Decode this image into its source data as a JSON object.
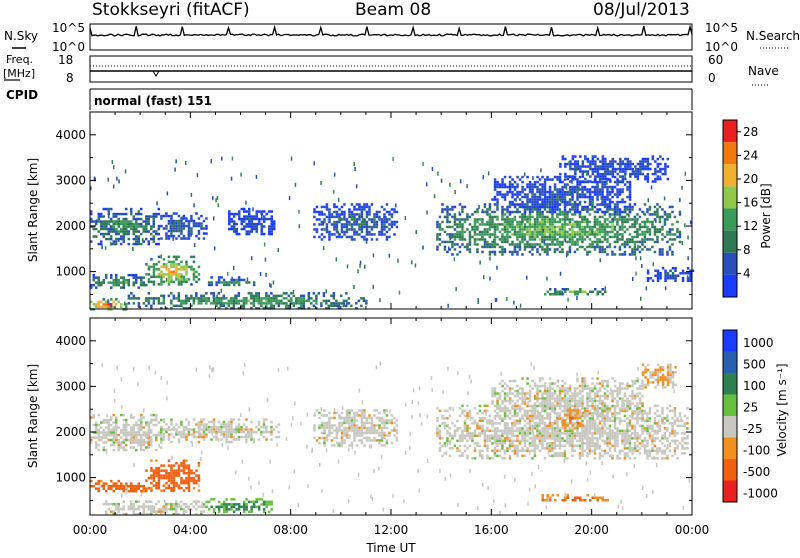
{
  "header": {
    "station": "Stokkseyri (fitACF)",
    "beam": "Beam 08",
    "date": "08/Jul/2013"
  },
  "top_panels": {
    "nsky_label": "N.Sky",
    "nsearch_label": "N.Search",
    "noise_ticks_left": [
      "10^5",
      "10^0"
    ],
    "noise_ticks_right": [
      "10^5",
      "10^0"
    ],
    "freq_label": "Freq.",
    "freq_unit": "[MHz]",
    "freq_ticks": [
      "18",
      "8"
    ],
    "nave_label": "Nave",
    "nave_ticks": [
      "60",
      "0"
    ],
    "cpid_label": "CPID",
    "cpid_value": "normal (fast) 151"
  },
  "colors": {
    "power_scale": [
      "#1a3cff",
      "#2850b8",
      "#2f7a55",
      "#3a9a5a",
      "#8fc84a",
      "#f0b030",
      "#f07a10",
      "#e82020"
    ],
    "velocity_scale": [
      "#1a3cff",
      "#2860b0",
      "#2f8050",
      "#66c040",
      "#c8c8c0",
      "#f09020",
      "#f06010",
      "#e82020"
    ]
  },
  "chart_data": [
    {
      "type": "heatmap",
      "name": "power",
      "ylabel": "Slant Range [km]",
      "yticks": [
        1000,
        2000,
        3000,
        4000
      ],
      "ylim": [
        180,
        4500
      ],
      "xlim": [
        0,
        24
      ],
      "colorbar": {
        "label": "Power [dB]",
        "ticks": [
          "4",
          "8",
          "12",
          "16",
          "20",
          "24",
          "28"
        ],
        "range": [
          0,
          30
        ]
      },
      "regions": [
        {
          "t0": 0.0,
          "t1": 1.4,
          "r0": 180,
          "r1": 420,
          "value": 28
        },
        {
          "t0": 0.0,
          "t1": 2.2,
          "r0": 650,
          "r1": 950,
          "value": 14
        },
        {
          "t0": 2.2,
          "t1": 4.3,
          "r0": 700,
          "r1": 1350,
          "value": 22
        },
        {
          "t0": 0.0,
          "t1": 2.7,
          "r0": 1600,
          "r1": 2400,
          "value": 12
        },
        {
          "t0": 2.7,
          "t1": 4.6,
          "r0": 1700,
          "r1": 2300,
          "value": 8
        },
        {
          "t0": 4.5,
          "t1": 6.5,
          "r0": 700,
          "r1": 900,
          "value": 12
        },
        {
          "t0": 1.5,
          "t1": 11.0,
          "r0": 200,
          "r1": 550,
          "value": 14
        },
        {
          "t0": 5.5,
          "t1": 7.3,
          "r0": 1800,
          "r1": 2400,
          "value": 6
        },
        {
          "t0": 8.9,
          "t1": 12.2,
          "r0": 1700,
          "r1": 2500,
          "value": 8
        },
        {
          "t0": 13.8,
          "t1": 23.5,
          "r0": 1400,
          "r1": 2500,
          "value": 16
        },
        {
          "t0": 16.0,
          "t1": 21.5,
          "r0": 2300,
          "r1": 3100,
          "value": 6
        },
        {
          "t0": 18.7,
          "t1": 23.0,
          "r0": 3000,
          "r1": 3550,
          "value": 6
        },
        {
          "t0": 18.0,
          "t1": 20.5,
          "r0": 480,
          "r1": 640,
          "value": 18
        },
        {
          "t0": 22.2,
          "t1": 24.0,
          "r0": 800,
          "r1": 1100,
          "value": 6
        }
      ]
    },
    {
      "type": "heatmap",
      "name": "velocity",
      "xlabel": "Time UT",
      "ylabel": "Slant Range [km]",
      "yticks": [
        1000,
        2000,
        3000,
        4000
      ],
      "ylim": [
        180,
        4500
      ],
      "xlim": [
        0,
        24
      ],
      "xticks": [
        "00:00",
        "04:00",
        "08:00",
        "12:00",
        "16:00",
        "20:00",
        "00:00"
      ],
      "colorbar": {
        "label": "Velocity [m s⁻¹]",
        "ticks": [
          "1000",
          "500",
          "100",
          "25",
          "-25",
          "-100",
          "-500",
          "-1000"
        ]
      },
      "regions": [
        {
          "t0": 0.0,
          "t1": 2.2,
          "r0": 700,
          "r1": 950,
          "value": -300
        },
        {
          "t0": 2.2,
          "t1": 4.3,
          "r0": 700,
          "r1": 1400,
          "value": -250
        },
        {
          "t0": 0.0,
          "t1": 2.8,
          "r0": 1600,
          "r1": 2400,
          "value": 0
        },
        {
          "t0": 2.8,
          "t1": 7.5,
          "r0": 1800,
          "r1": 2300,
          "value": 0
        },
        {
          "t0": 4.5,
          "t1": 7.2,
          "r0": 250,
          "r1": 550,
          "value": 150
        },
        {
          "t0": 0.5,
          "t1": 4.5,
          "r0": 200,
          "r1": 500,
          "value": 0
        },
        {
          "t0": 8.9,
          "t1": 12.2,
          "r0": 1700,
          "r1": 2500,
          "value": 0
        },
        {
          "t0": 13.8,
          "t1": 23.8,
          "r0": 1400,
          "r1": 2600,
          "value": 0
        },
        {
          "t0": 16.0,
          "t1": 22.0,
          "r0": 2300,
          "r1": 3200,
          "value": 0
        },
        {
          "t0": 18.0,
          "t1": 20.6,
          "r0": 480,
          "r1": 640,
          "value": -150
        },
        {
          "t0": 18.7,
          "t1": 19.6,
          "r0": 2100,
          "r1": 2500,
          "value": -120
        },
        {
          "t0": 22.0,
          "t1": 23.3,
          "r0": 3000,
          "r1": 3500,
          "value": -40
        }
      ]
    }
  ]
}
